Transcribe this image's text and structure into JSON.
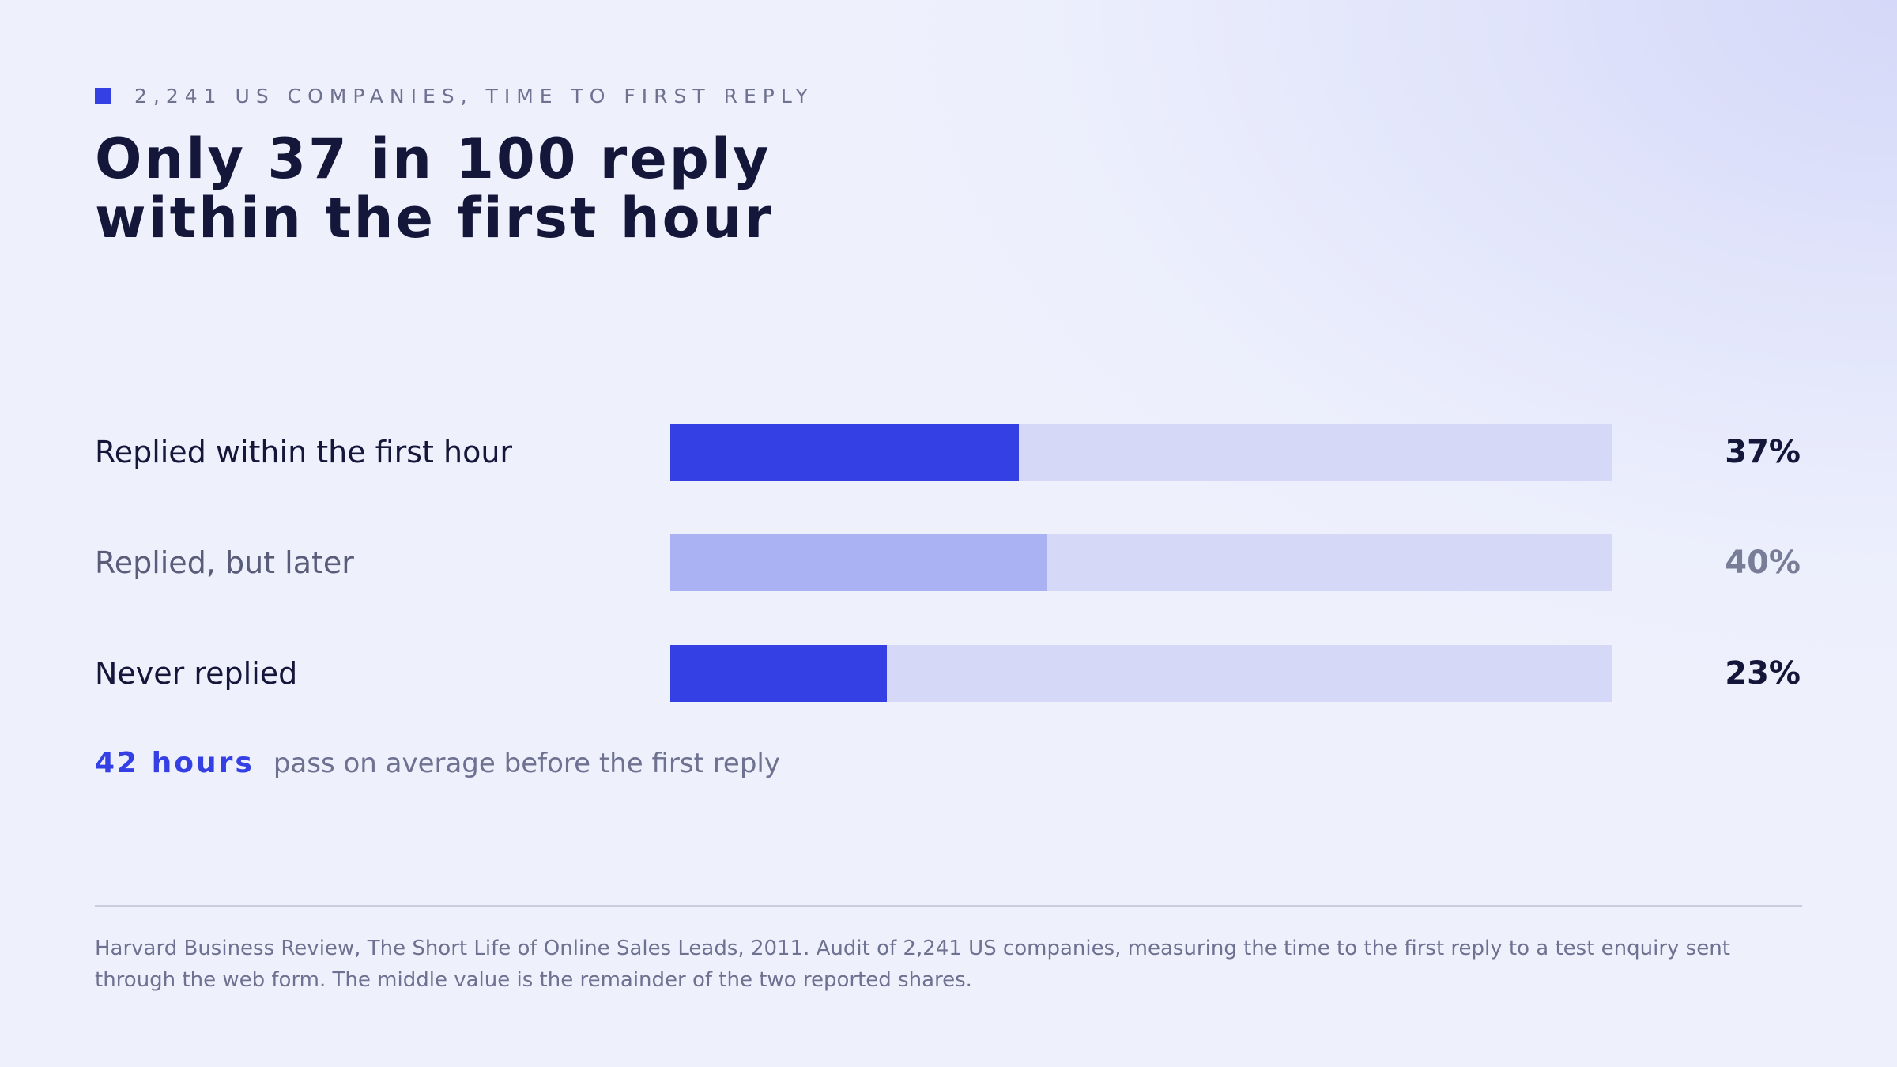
{
  "header": {
    "eyebrow": "2,241 US COMPANIES, TIME TO FIRST REPLY",
    "title_lines": [
      "Only 37 in 100 reply",
      "within the first hour"
    ]
  },
  "chart_data": {
    "type": "bar",
    "orientation": "horizontal",
    "categories": [
      "Replied within the first hour",
      "Replied, but later",
      "Never replied"
    ],
    "values": [
      37,
      40,
      23
    ],
    "value_labels": [
      "37%",
      "40%",
      "23%"
    ],
    "xlim": [
      0,
      100
    ],
    "bar_colors": [
      "#3540e4",
      "#abb2f3",
      "#3540e4"
    ],
    "track_color": "#d5d8f7",
    "label_colors": [
      "#14163a",
      "#5a5d7a",
      "#14163a"
    ],
    "value_colors": [
      "#14163a",
      "#7a7d98",
      "#14163a"
    ],
    "grid": false
  },
  "note": {
    "emphasis": "42 hours",
    "text": "pass on average before the first reply"
  },
  "source": "Harvard Business Review, The Short Life of Online Sales Leads, 2011. Audit of 2,241 US companies, measuring the time to the first reply to a test enquiry sent through the web form. The middle value is the remainder of the two reported shares."
}
